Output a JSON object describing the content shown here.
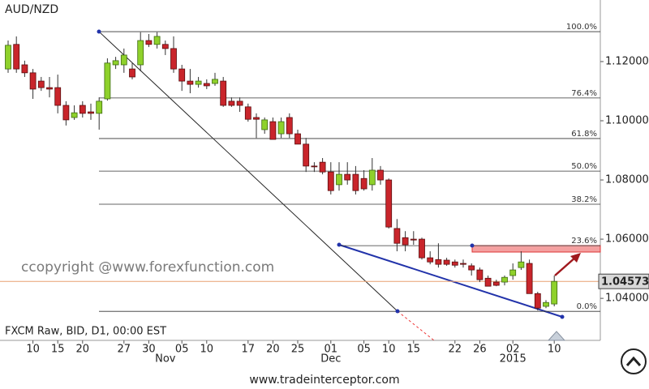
{
  "chart_data": {
    "type": "candlestick",
    "title": "AUD/NZD",
    "watermark": "ccopyright @www.forexfunction.com",
    "feed_info": "FXCM Raw, BID, D1, 00:00 EST",
    "footer": "www.tradeinterceptor.com",
    "categories": [
      null,
      null,
      null,
      "10",
      null,
      null,
      "15",
      null,
      null,
      "20",
      null,
      null,
      null,
      null,
      "27",
      null,
      null,
      "30",
      null,
      null,
      null,
      "05",
      null,
      null,
      "10",
      null,
      null,
      null,
      null,
      "17",
      null,
      null,
      "20",
      null,
      null,
      "25",
      null,
      null,
      null,
      "01",
      null,
      null,
      null,
      "05",
      null,
      null,
      "10",
      null,
      null,
      "15",
      null,
      null,
      null,
      null,
      "22",
      null,
      null,
      "26",
      null,
      null,
      null,
      "02",
      null,
      null,
      null,
      null,
      "10"
    ],
    "months": [
      null,
      null,
      null,
      null,
      null,
      null,
      null,
      null,
      null,
      null,
      null,
      null,
      null,
      null,
      null,
      null,
      null,
      null,
      null,
      "Nov",
      null,
      null,
      null,
      null,
      null,
      null,
      null,
      null,
      null,
      null,
      null,
      null,
      null,
      null,
      null,
      null,
      null,
      null,
      null,
      "Dec",
      null,
      null,
      null,
      null,
      null,
      null,
      null,
      null,
      null,
      null,
      null,
      null,
      null,
      null,
      null,
      null,
      null,
      null,
      null,
      null,
      null,
      "2015",
      null,
      null,
      null,
      null,
      null
    ],
    "open": [
      1.1175,
      1.1258,
      1.1189,
      1.1162,
      1.1134,
      1.1112,
      1.1112,
      1.1052,
      1.1011,
      1.1052,
      1.103,
      1.1025,
      1.1074,
      1.1189,
      1.1189,
      1.1175,
      1.1189,
      1.1271,
      1.1258,
      1.1258,
      1.1244,
      1.1175,
      1.1134,
      1.1123,
      1.1126,
      1.1126,
      1.1134,
      1.1066,
      1.1066,
      1.1047,
      1.1011,
      1.097,
      1.0997,
      1.0956,
      1.1011,
      1.0956,
      1.0921,
      1.0847,
      1.086,
      1.0827,
      1.0784,
      1.0819,
      1.0819,
      1.0805,
      1.0784,
      1.0833,
      1.08,
      1.0636,
      1.0605,
      1.06,
      1.06,
      1.0537,
      1.0531,
      1.0529,
      1.0523,
      1.0518,
      1.051,
      1.0496,
      1.0468,
      1.0455,
      1.0455,
      1.0477,
      1.0504,
      1.0518,
      1.0416,
      1.0373,
      1.0381
    ],
    "high": [
      1.1271,
      1.1285,
      1.1203,
      1.1175,
      1.1148,
      1.1148,
      1.1156,
      1.1066,
      1.1052,
      1.1066,
      1.1058,
      1.1079,
      1.1211,
      1.1216,
      1.1244,
      1.1195,
      1.1299,
      1.1293,
      1.1299,
      1.1271,
      1.1285,
      1.1189,
      1.1175,
      1.1148,
      1.114,
      1.1162,
      1.1148,
      1.1079,
      1.1079,
      1.1058,
      1.1025,
      1.1011,
      1.1011,
      1.1011,
      1.1025,
      1.097,
      1.0942,
      1.086,
      1.0874,
      1.086,
      1.086,
      1.086,
      1.0847,
      1.0833,
      1.0874,
      1.0847,
      1.0805,
      1.0668,
      1.0627,
      1.0627,
      1.0605,
      1.0559,
      1.0586,
      1.0537,
      1.0531,
      1.0531,
      1.0518,
      1.0504,
      1.0477,
      1.0463,
      1.0477,
      1.0518,
      1.0559,
      1.0531,
      1.0422,
      1.0394,
      1.0477
    ],
    "low": [
      1.1162,
      1.1162,
      1.1148,
      1.1074,
      1.1101,
      1.1079,
      1.1025,
      1.0984,
      1.1003,
      1.1011,
      1.1003,
      1.097,
      1.1068,
      1.1175,
      1.1162,
      1.114,
      1.1167,
      1.1249,
      1.1244,
      1.1222,
      1.1162,
      1.1101,
      1.1093,
      1.1112,
      1.1107,
      1.1118,
      1.1047,
      1.1047,
      1.103,
      1.0997,
      1.0942,
      1.0956,
      1.0937,
      1.0942,
      1.0942,
      1.0921,
      1.0827,
      1.0827,
      1.0819,
      1.0751,
      1.0764,
      1.0784,
      1.0751,
      1.0764,
      1.0764,
      1.0784,
      1.0636,
      1.0559,
      1.0559,
      1.0581,
      1.0531,
      1.0515,
      1.0504,
      1.051,
      1.0504,
      1.0504,
      1.0477,
      1.0455,
      1.0441,
      1.0441,
      1.0444,
      1.0463,
      1.0496,
      1.0416,
      1.0359,
      1.0367,
      1.0373
    ],
    "close": [
      1.1255,
      1.1175,
      1.1162,
      1.1107,
      1.1112,
      1.1107,
      1.1052,
      1.1003,
      1.1027,
      1.1025,
      1.1025,
      1.1066,
      1.1195,
      1.1203,
      1.1222,
      1.1148,
      1.1271,
      1.1258,
      1.1285,
      1.1244,
      1.1175,
      1.1134,
      1.1123,
      1.1134,
      1.1118,
      1.114,
      1.1052,
      1.1052,
      1.1052,
      1.1005,
      1.1005,
      1.1003,
      1.0937,
      1.0997,
      1.0956,
      1.0921,
      1.0847,
      1.0845,
      1.0827,
      1.0764,
      1.0819,
      1.08,
      1.0764,
      1.077,
      1.0833,
      1.08,
      1.0641,
      1.0586,
      1.0581,
      1.0597,
      1.0537,
      1.0523,
      1.0515,
      1.0515,
      1.0512,
      1.0515,
      1.0496,
      1.0463,
      1.0441,
      1.0444,
      1.0471,
      1.0496,
      1.0523,
      1.0416,
      1.0367,
      1.0386,
      1.04573
    ],
    "up_color": "#8fd12b",
    "down_color": "#c9252b",
    "ylim": [
      1.0258,
      1.1408
    ],
    "yticks": [
      {
        "value": 1.04,
        "label": "1.04000"
      },
      {
        "value": 1.06,
        "label": "1.06000"
      },
      {
        "value": 1.08,
        "label": "1.08000"
      },
      {
        "value": 1.1,
        "label": "1.10000"
      },
      {
        "value": 1.12,
        "label": "1.12000"
      }
    ],
    "last_price": {
      "value": 1.04573,
      "label": "1.04573"
    },
    "fib_levels": [
      {
        "name": "100.0%",
        "value": 1.1301
      },
      {
        "name": "76.4%",
        "value": 1.1077
      },
      {
        "name": "61.8%",
        "value": 1.094
      },
      {
        "name": "50.0%",
        "value": 1.083
      },
      {
        "name": "38.2%",
        "value": 1.0718
      },
      {
        "name": "23.6%",
        "value": 1.0578
      },
      {
        "name": "0.0%",
        "value": 1.0356
      }
    ]
  }
}
